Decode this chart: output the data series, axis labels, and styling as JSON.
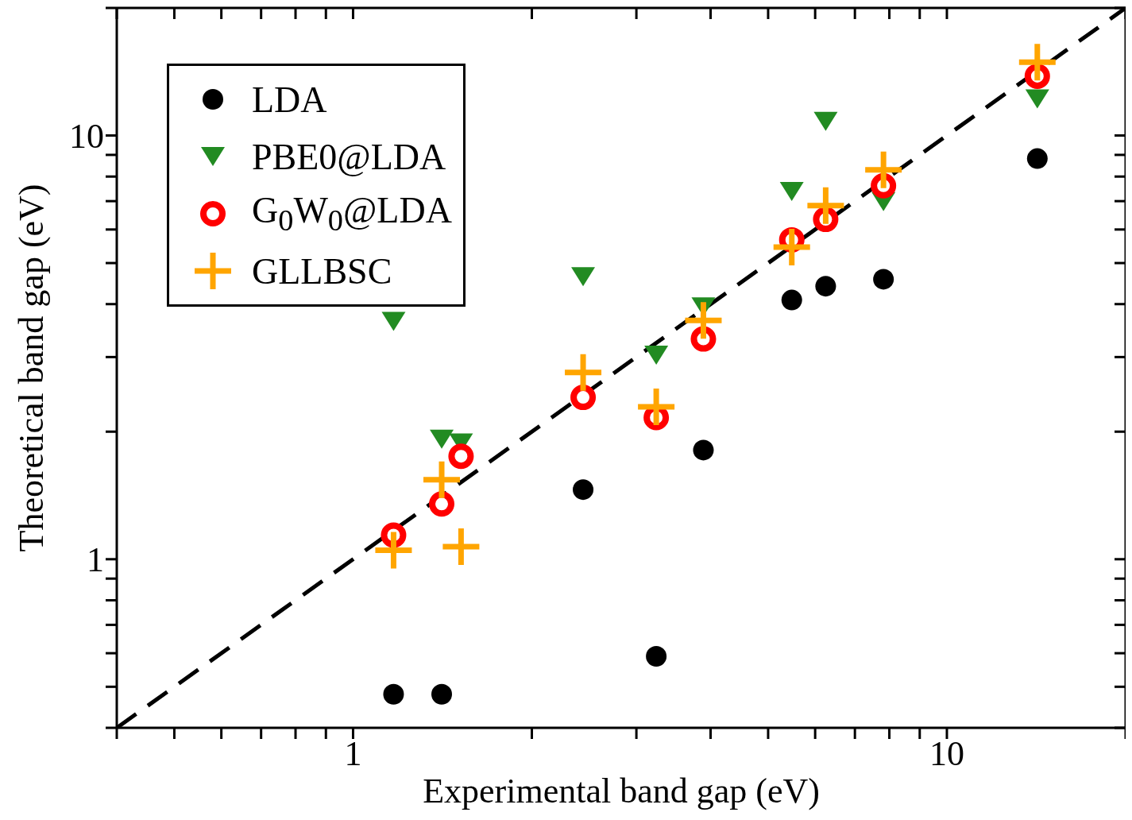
{
  "chart_data": {
    "type": "scatter",
    "xlabel": "Experimental band gap (eV)",
    "ylabel": "Theoretical band gap (eV)",
    "log": "xy",
    "xlim": [
      0.4,
      20
    ],
    "ylim": [
      0.4,
      20
    ],
    "xticks": [
      {
        "value": 0.4,
        "label": null
      },
      {
        "value": 0.5,
        "label": null
      },
      {
        "value": 0.6,
        "label": null
      },
      {
        "value": 0.7,
        "label": null
      },
      {
        "value": 0.8,
        "label": null
      },
      {
        "value": 0.9,
        "label": null
      },
      1,
      {
        "value": 2,
        "label": null
      },
      {
        "value": 3,
        "label": null
      },
      {
        "value": 4,
        "label": null
      },
      {
        "value": 5,
        "label": null
      },
      {
        "value": 6,
        "label": null
      },
      {
        "value": 7,
        "label": null
      },
      {
        "value": 8,
        "label": null
      },
      {
        "value": 9,
        "label": null
      },
      10,
      {
        "value": 20,
        "label": null
      }
    ],
    "yticks": [
      {
        "value": 0.4,
        "label": null
      },
      {
        "value": 0.5,
        "label": null
      },
      {
        "value": 0.6,
        "label": null
      },
      {
        "value": 0.7,
        "label": null
      },
      {
        "value": 0.8,
        "label": null
      },
      {
        "value": 0.9,
        "label": null
      },
      1,
      {
        "value": 2,
        "label": null
      },
      {
        "value": 3,
        "label": null
      },
      {
        "value": 4,
        "label": null
      },
      {
        "value": 5,
        "label": null
      },
      {
        "value": 6,
        "label": null
      },
      {
        "value": 7,
        "label": null
      },
      {
        "value": 8,
        "label": null
      },
      {
        "value": 9,
        "label": null
      },
      10,
      {
        "value": 20,
        "label": null
      }
    ],
    "legend": "top left",
    "series": [
      {
        "name": "LDA",
        "color": "#000000",
        "marker": "circle",
        "x": [
          1.17,
          1.41,
          2.44,
          3.24,
          3.89,
          5.48,
          6.25,
          7.82,
          14.2
        ],
        "values": [
          0.48,
          0.48,
          1.46,
          0.59,
          1.81,
          4.09,
          4.41,
          4.58,
          8.82
        ]
      },
      {
        "name": "PBE0@LDA",
        "color": "#228b22",
        "marker": "triangle",
        "x": [
          1.17,
          1.41,
          1.52,
          2.44,
          3.24,
          3.89,
          5.48,
          6.25,
          7.82,
          14.2
        ],
        "values": [
          3.64,
          1.92,
          1.88,
          4.64,
          3.03,
          3.94,
          7.38,
          10.8,
          6.98,
          12.2
        ]
      },
      {
        "name": "G$_{0}$W$_{0}$@LDA",
        "color": "#ff0000",
        "marker": "circle",
        "x": [
          1.17,
          1.41,
          1.52,
          2.44,
          3.24,
          3.89,
          5.48,
          6.25,
          7.82,
          14.2
        ],
        "values": [
          1.14,
          1.35,
          1.75,
          2.41,
          2.16,
          3.31,
          5.67,
          6.34,
          7.61,
          13.8
        ]
      },
      {
        "name": "GLLBSC",
        "color": "#ffa500",
        "marker": "cross",
        "x": [
          1.17,
          1.41,
          1.52,
          2.44,
          3.24,
          3.89,
          5.48,
          6.25,
          7.82,
          14.2
        ],
        "values": [
          1.05,
          1.54,
          1.07,
          2.76,
          2.29,
          3.66,
          5.45,
          6.83,
          8.3,
          14.9
        ]
      },
      {
        "type": "line",
        "color": "#000000",
        "line_style": "dashed",
        "marker": "none",
        "x": [
          0.4,
          20
        ],
        "values": [
          0.4,
          20
        ]
      }
    ]
  }
}
